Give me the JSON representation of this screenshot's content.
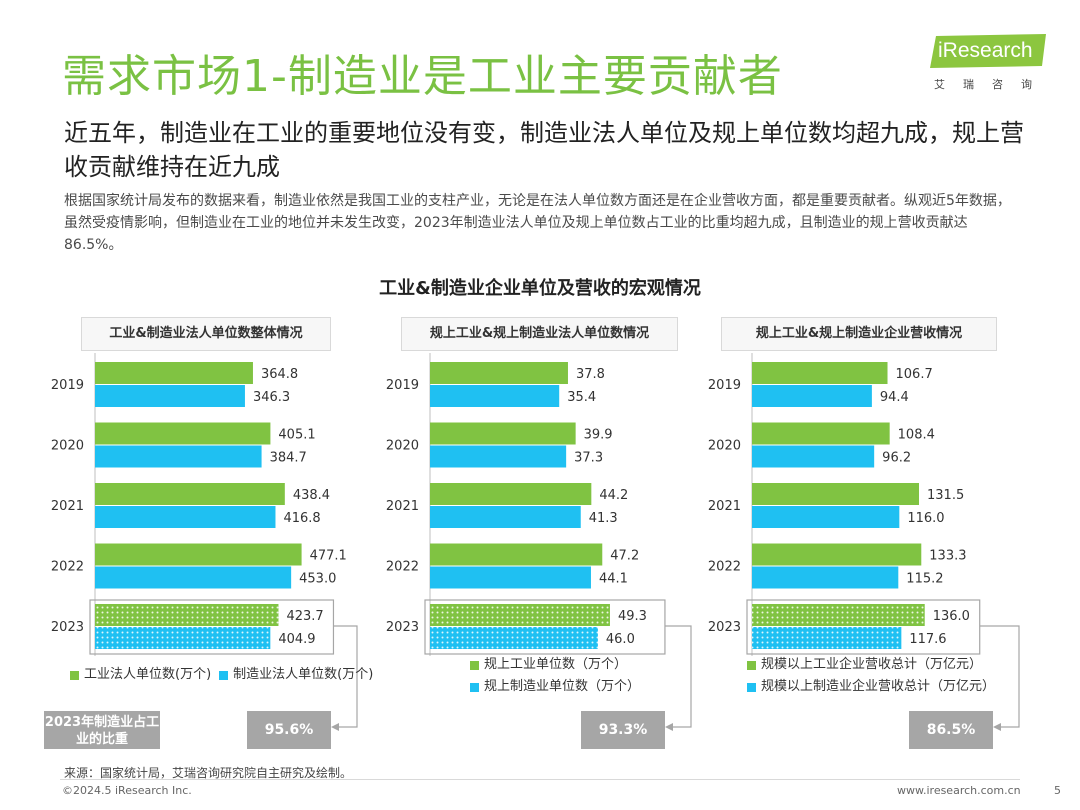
{
  "header": {
    "title": "需求市场1-制造业是工业主要贡献者",
    "logo_text": "iResearch",
    "logo_sub": "艾瑞咨询"
  },
  "subtitle": "近五年，制造业在工业的重要地位没有变，制造业法人单位及规上单位数均超九成，规上营收贡献维持在近九成",
  "body": "根据国家统计局发布的数据来看，制造业依然是我国工业的支柱产业，无论是在法人单位数方面还是在企业营收方面，都是重要贡献者。纵观近5年数据，虽然受疫情影响，但制造业在工业的地位并未发生改变，2023年制造业法人单位及规上单位数占工业的比重均超九成，且制造业的规上营收贡献达86.5%。",
  "chart_section_title": "工业&制造业企业单位及营收的宏观情况",
  "colors": {
    "green": "#80c342",
    "blue": "#1fc0f2",
    "gray": "#a6a6a6",
    "title_green": "#7ac143"
  },
  "chart_data": [
    {
      "type": "bar",
      "orientation": "horizontal",
      "title": "工业&制造业法人单位数整体情况",
      "categories": [
        "2019",
        "2020",
        "2021",
        "2022",
        "2023"
      ],
      "series": [
        {
          "name": "工业法人单位数(万个)",
          "values": [
            364.8,
            405.1,
            438.4,
            477.1,
            423.7
          ]
        },
        {
          "name": "制造业法人单位数(万个)",
          "values": [
            346.3,
            384.7,
            416.8,
            453.0,
            404.9
          ]
        }
      ],
      "highlight_category": "2023",
      "share_2023": "95.6%"
    },
    {
      "type": "bar",
      "orientation": "horizontal",
      "title": "规上工业&规上制造业法人单位数情况",
      "categories": [
        "2019",
        "2020",
        "2021",
        "2022",
        "2023"
      ],
      "series": [
        {
          "name": "规上工业单位数（万个）",
          "values": [
            37.8,
            39.9,
            44.2,
            47.2,
            49.3
          ]
        },
        {
          "name": "规上制造业单位数（万个）",
          "values": [
            35.4,
            37.3,
            41.3,
            44.1,
            46.0
          ]
        }
      ],
      "highlight_category": "2023",
      "share_2023": "93.3%"
    },
    {
      "type": "bar",
      "orientation": "horizontal",
      "title": "规上工业&规上制造业企业营收情况",
      "categories": [
        "2019",
        "2020",
        "2021",
        "2022",
        "2023"
      ],
      "series": [
        {
          "name": "规模以上工业企业营收总计（万亿元）",
          "values": [
            106.7,
            108.4,
            131.5,
            133.3,
            136.0
          ]
        },
        {
          "name": "规模以上制造业企业营收总计（万亿元）",
          "values": [
            94.4,
            96.2,
            116.0,
            115.2,
            117.6
          ]
        }
      ],
      "highlight_category": "2023",
      "share_2023": "86.5%"
    }
  ],
  "share_label": "2023年制造业占工业的比重",
  "footer": {
    "source": "来源：国家统计局，艾瑞咨询研究院自主研究及绘制。",
    "copyright": "©2024.5 iResearch Inc.",
    "website": "www.iresearch.com.cn",
    "page": "5"
  }
}
